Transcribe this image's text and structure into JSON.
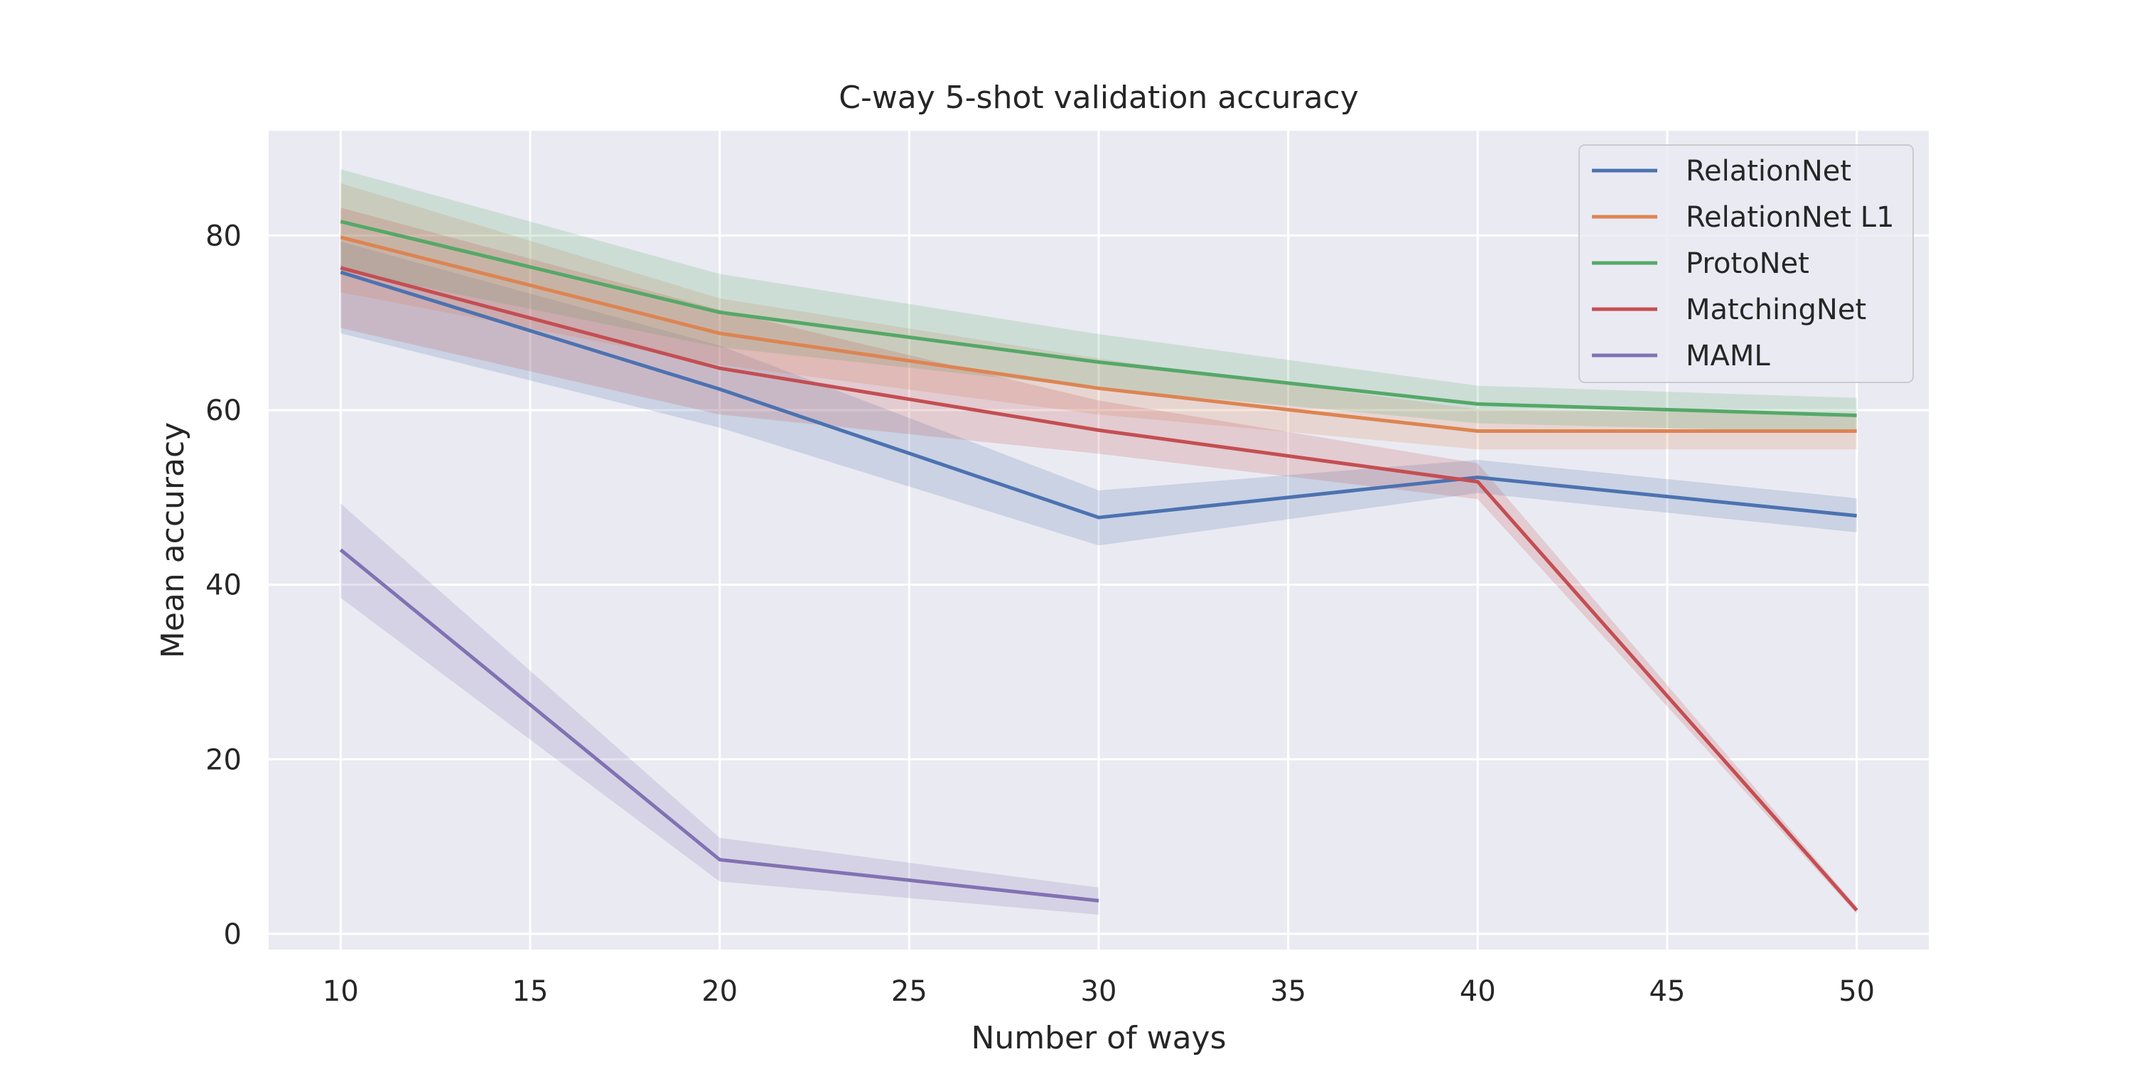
{
  "chart_data": {
    "type": "line",
    "title": "C-way 5-shot validation accuracy",
    "xlabel": "Number of ways",
    "ylabel": "Mean accuracy",
    "xlim": [
      8.1,
      51.9
    ],
    "ylim": [
      -1.8,
      92
    ],
    "xticks": [
      10,
      15,
      20,
      25,
      30,
      35,
      40,
      45,
      50
    ],
    "yticks": [
      0,
      20,
      40,
      60,
      80
    ],
    "grid": true,
    "legend_position": "top-right",
    "series": [
      {
        "name": "RelationNet",
        "color": "#4c72b0",
        "x": [
          10,
          20,
          30,
          40,
          50
        ],
        "y": [
          75.8,
          62.4,
          47.7,
          52.3,
          47.9
        ],
        "ci_low": [
          68.8,
          58.0,
          44.5,
          50.5,
          46.0
        ],
        "ci_high": [
          79.3,
          67.4,
          50.8,
          54.3,
          49.9
        ]
      },
      {
        "name": "RelationNet L1",
        "color": "#dd8452",
        "x": [
          10,
          20,
          30,
          40,
          50
        ],
        "y": [
          79.8,
          68.8,
          62.5,
          57.6,
          57.6
        ],
        "ci_low": [
          73.5,
          65.2,
          59.5,
          55.5,
          55.5
        ],
        "ci_high": [
          86.0,
          72.8,
          65.9,
          60.1,
          59.5
        ]
      },
      {
        "name": "ProtoNet",
        "color": "#55a868",
        "x": [
          10,
          20,
          30,
          40,
          50
        ],
        "y": [
          81.6,
          71.2,
          65.5,
          60.7,
          59.4
        ],
        "ci_low": [
          76.0,
          67.2,
          62.5,
          58.5,
          57.4
        ],
        "ci_high": [
          87.6,
          75.6,
          68.7,
          62.8,
          61.4
        ]
      },
      {
        "name": "MatchingNet",
        "color": "#c44e52",
        "x": [
          10,
          20,
          30,
          40,
          50
        ],
        "y": [
          76.3,
          64.8,
          57.7,
          51.8,
          2.7
        ],
        "ci_low": [
          69.4,
          59.5,
          55.0,
          49.8,
          2.3
        ],
        "ci_high": [
          83.2,
          71.5,
          61.1,
          53.9,
          3.1
        ]
      },
      {
        "name": "MAML",
        "color": "#8172b3",
        "x": [
          10,
          20,
          30
        ],
        "y": [
          44.0,
          8.5,
          3.8
        ],
        "ci_low": [
          38.5,
          6.0,
          2.2
        ],
        "ci_high": [
          49.3,
          11.0,
          5.3
        ]
      }
    ]
  }
}
